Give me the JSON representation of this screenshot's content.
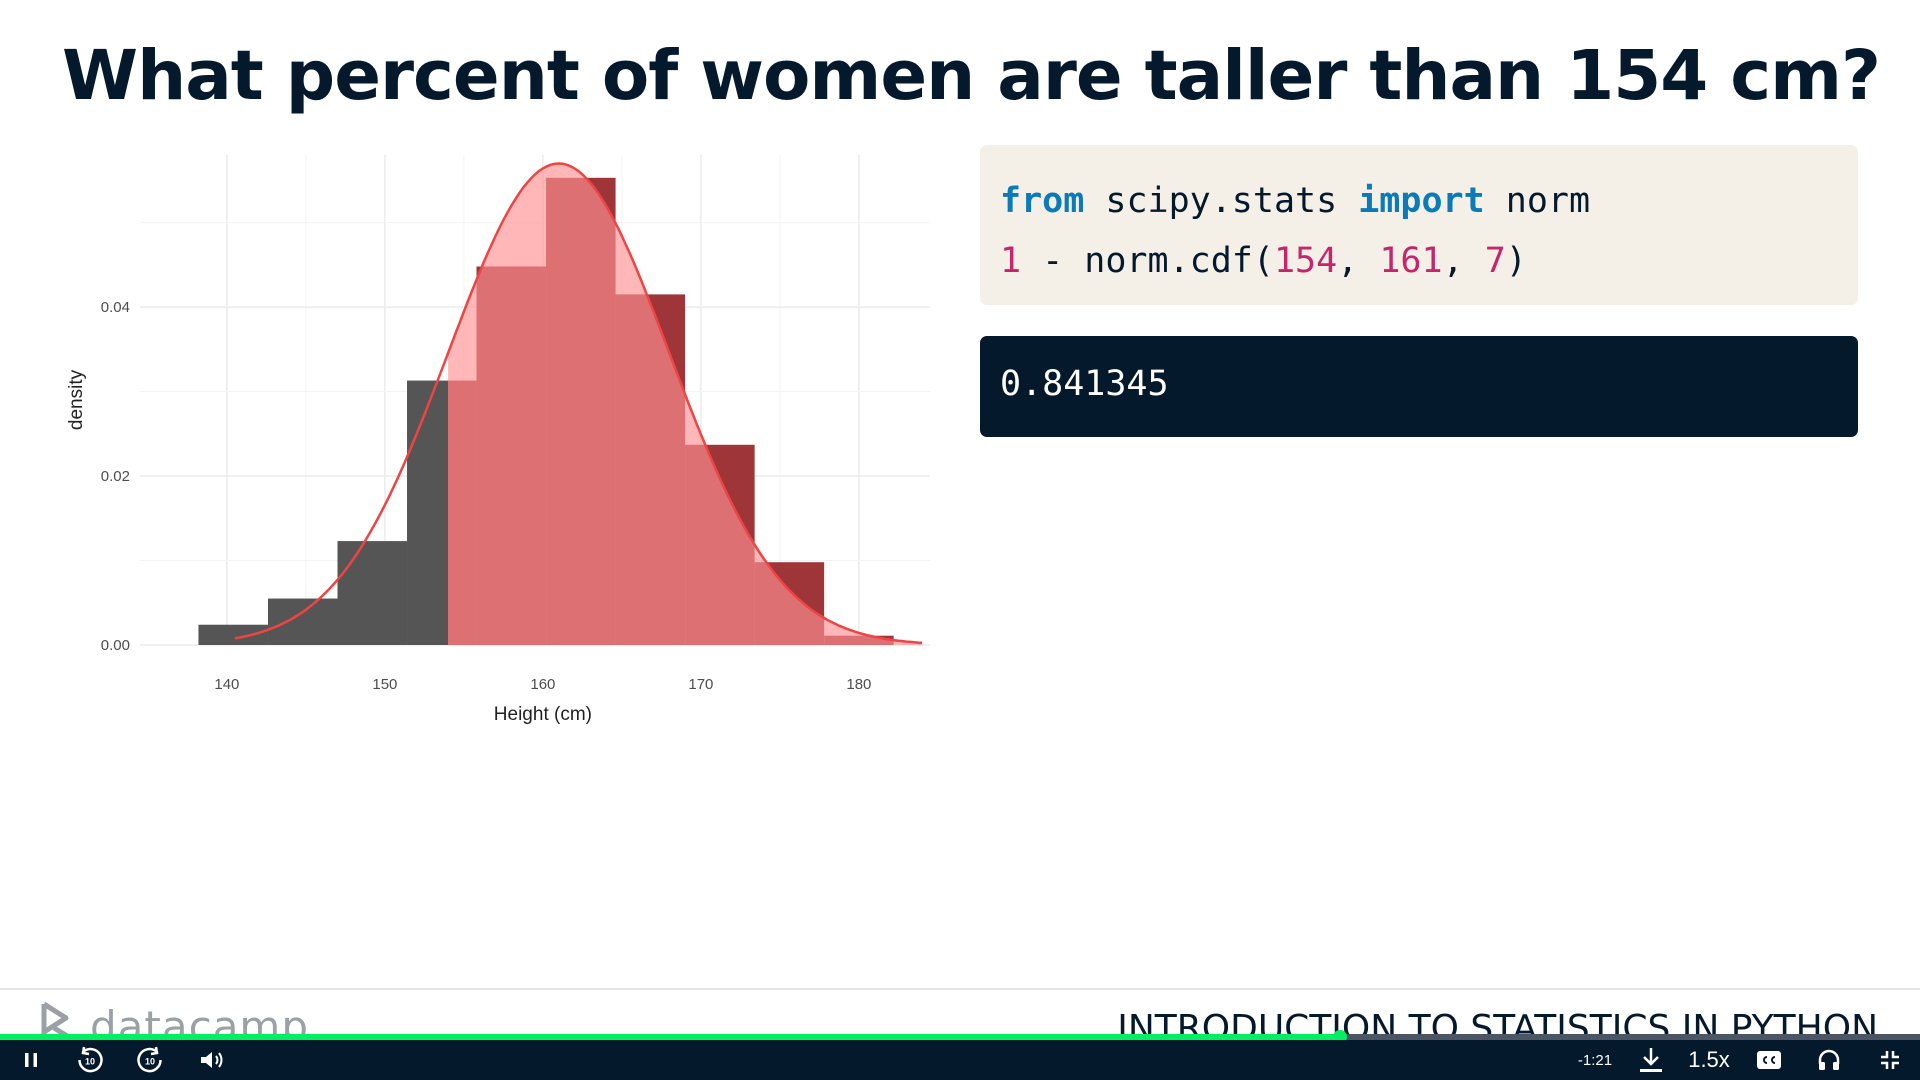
{
  "slide": {
    "title": "What percent of women are taller than 154 cm?"
  },
  "code": {
    "line1": [
      {
        "text": "from",
        "kind": "kw"
      },
      {
        "text": " scipy.stats ",
        "kind": "plain"
      },
      {
        "text": "import",
        "kind": "kw"
      },
      {
        "text": " norm",
        "kind": "plain"
      }
    ],
    "line2": [
      {
        "text": "1",
        "kind": "num"
      },
      {
        "text": " - norm.cdf(",
        "kind": "plain"
      },
      {
        "text": "154",
        "kind": "num"
      },
      {
        "text": ", ",
        "kind": "plain"
      },
      {
        "text": "161",
        "kind": "num"
      },
      {
        "text": ", ",
        "kind": "plain"
      },
      {
        "text": "7",
        "kind": "num"
      },
      {
        "text": ")",
        "kind": "plain"
      }
    ]
  },
  "output": {
    "value": "0.841345"
  },
  "footer": {
    "logo_text": "datacamp",
    "course_title": "INTRODUCTION TO STATISTICS IN PYTHON"
  },
  "player": {
    "progress": 0.698,
    "time_remaining": "-1:21",
    "speed": "1.5x",
    "skip_back_seconds": "10",
    "skip_forward_seconds": "10"
  },
  "colors": {
    "title": "#05192d",
    "keyword": "#0b7ab8",
    "number": "#c7246c",
    "code_bg": "#f4f0e8",
    "output_bg": "#05192d",
    "accent": "#03ef62",
    "histogram": "#555555",
    "shaded_histogram": "#9d3539",
    "curve": "#ef4444",
    "curve_fill": "#ff9090"
  },
  "chart_data": {
    "type": "bar",
    "xlabel": "Height (cm)",
    "ylabel": "density",
    "xlim": [
      134.5,
      184.5
    ],
    "ylim": [
      0,
      0.058
    ],
    "x_ticks": [
      140,
      150,
      160,
      170,
      180
    ],
    "y_ticks": [
      0.0,
      0.02,
      0.04
    ],
    "y_tick_labels": [
      "0.00",
      "0.02",
      "0.04"
    ],
    "grid": true,
    "shade_from_x": 154,
    "bins": [
      {
        "x0": 138.2,
        "x1": 142.6,
        "value": 0.0024
      },
      {
        "x0": 142.6,
        "x1": 147.0,
        "value": 0.0055
      },
      {
        "x0": 147.0,
        "x1": 151.4,
        "value": 0.0123
      },
      {
        "x0": 151.4,
        "x1": 155.8,
        "value": 0.0313
      },
      {
        "x0": 155.8,
        "x1": 160.2,
        "value": 0.0448
      },
      {
        "x0": 160.2,
        "x1": 164.6,
        "value": 0.0553
      },
      {
        "x0": 164.6,
        "x1": 169.0,
        "value": 0.0415
      },
      {
        "x0": 169.0,
        "x1": 173.4,
        "value": 0.0237
      },
      {
        "x0": 173.4,
        "x1": 177.8,
        "value": 0.0098
      },
      {
        "x0": 177.8,
        "x1": 182.2,
        "value": 0.0011
      }
    ],
    "curve": {
      "distribution": "normal",
      "mean": 161,
      "sd": 7,
      "x_range": [
        140.5,
        184.0
      ]
    }
  }
}
